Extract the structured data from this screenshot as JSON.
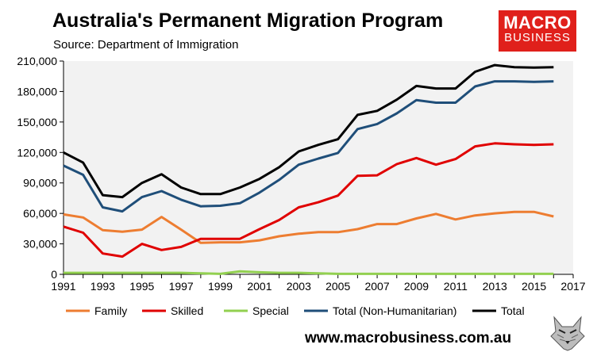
{
  "header": {
    "title": "Australia's Permanent Migration Program",
    "source": "Source: Department of Immigration"
  },
  "logo": {
    "line1": "MACRO",
    "line2": "BUSINESS",
    "color": "#e0201b"
  },
  "footer": {
    "url": "www.macrobusiness.com.au",
    "mascot": "fox-mascot-icon"
  },
  "chart_data": {
    "type": "line",
    "title": "Australia's Permanent Migration Program",
    "subtitle": "Source: Department of Immigration",
    "xlabel": "",
    "ylabel": "",
    "xlim": [
      1991,
      2017
    ],
    "ylim": [
      0,
      210000
    ],
    "grid": false,
    "background": "#f2f2f2",
    "legend_position": "bottom",
    "x": [
      1991,
      1992,
      1993,
      1994,
      1995,
      1996,
      1997,
      1998,
      1999,
      2000,
      2001,
      2002,
      2003,
      2004,
      2005,
      2006,
      2007,
      2008,
      2009,
      2010,
      2011,
      2012,
      2013,
      2014,
      2015,
      2016
    ],
    "x_ticks": [
      {
        "value": 1991,
        "label": "1991"
      },
      {
        "value": 1993,
        "label": "1993"
      },
      {
        "value": 1995,
        "label": "1995"
      },
      {
        "value": 1997,
        "label": "1997"
      },
      {
        "value": 1999,
        "label": "1999"
      },
      {
        "value": 2001,
        "label": "2001"
      },
      {
        "value": 2003,
        "label": "2003"
      },
      {
        "value": 2005,
        "label": "2005"
      },
      {
        "value": 2007,
        "label": "2007"
      },
      {
        "value": 2009,
        "label": "2009"
      },
      {
        "value": 2011,
        "label": "2011"
      },
      {
        "value": 2013,
        "label": "2013"
      },
      {
        "value": 2015,
        "label": "2015"
      },
      {
        "value": 2017,
        "label": "2017"
      }
    ],
    "y_ticks": [
      {
        "value": 0,
        "label": "0"
      },
      {
        "value": 30000,
        "label": "30,000"
      },
      {
        "value": 60000,
        "label": "60,000"
      },
      {
        "value": 90000,
        "label": "90,000"
      },
      {
        "value": 120000,
        "label": "120,000"
      },
      {
        "value": 150000,
        "label": "150,000"
      },
      {
        "value": 180000,
        "label": "180,000"
      },
      {
        "value": 210000,
        "label": "210,000"
      }
    ],
    "series": [
      {
        "name": "Family",
        "color": "#ed7d31",
        "values": [
          59000,
          56000,
          43500,
          42000,
          44000,
          56500,
          44000,
          31000,
          31500,
          31500,
          33500,
          37500,
          40000,
          41500,
          41500,
          44500,
          49500,
          49500,
          55000,
          59500,
          54000,
          58000,
          60000,
          61500,
          61500,
          57000
        ]
      },
      {
        "name": "Skilled",
        "color": "#e00000",
        "values": [
          47000,
          41000,
          20500,
          17500,
          30000,
          24000,
          27000,
          35000,
          35000,
          35000,
          44500,
          53500,
          66000,
          71000,
          77500,
          97000,
          97500,
          108500,
          114500,
          108000,
          113500,
          126000,
          129000,
          128000,
          127500,
          128000
        ]
      },
      {
        "name": "Special",
        "color": "#92d050",
        "values": [
          1500,
          1500,
          1500,
          1500,
          1500,
          1500,
          1500,
          1000,
          500,
          3000,
          2000,
          1500,
          1500,
          1000,
          500,
          500,
          500,
          500,
          500,
          500,
          500,
          500,
          500,
          500,
          500,
          500
        ]
      },
      {
        "name": "Total (Non-Humanitarian)",
        "color": "#1f4e79",
        "values": [
          107000,
          98000,
          66000,
          62000,
          76000,
          82000,
          73500,
          67000,
          67500,
          70000,
          80500,
          93000,
          108000,
          114000,
          119500,
          143000,
          148000,
          158500,
          171500,
          169000,
          169000,
          185000,
          190000,
          190000,
          189500,
          190000
        ]
      },
      {
        "name": "Total",
        "color": "#000000",
        "values": [
          120000,
          110000,
          78000,
          76000,
          90000,
          98500,
          85500,
          79000,
          79000,
          85500,
          94000,
          105500,
          121000,
          127500,
          133000,
          157000,
          161000,
          172000,
          185500,
          183000,
          183000,
          199500,
          206000,
          204000,
          203500,
          204000
        ]
      }
    ]
  }
}
